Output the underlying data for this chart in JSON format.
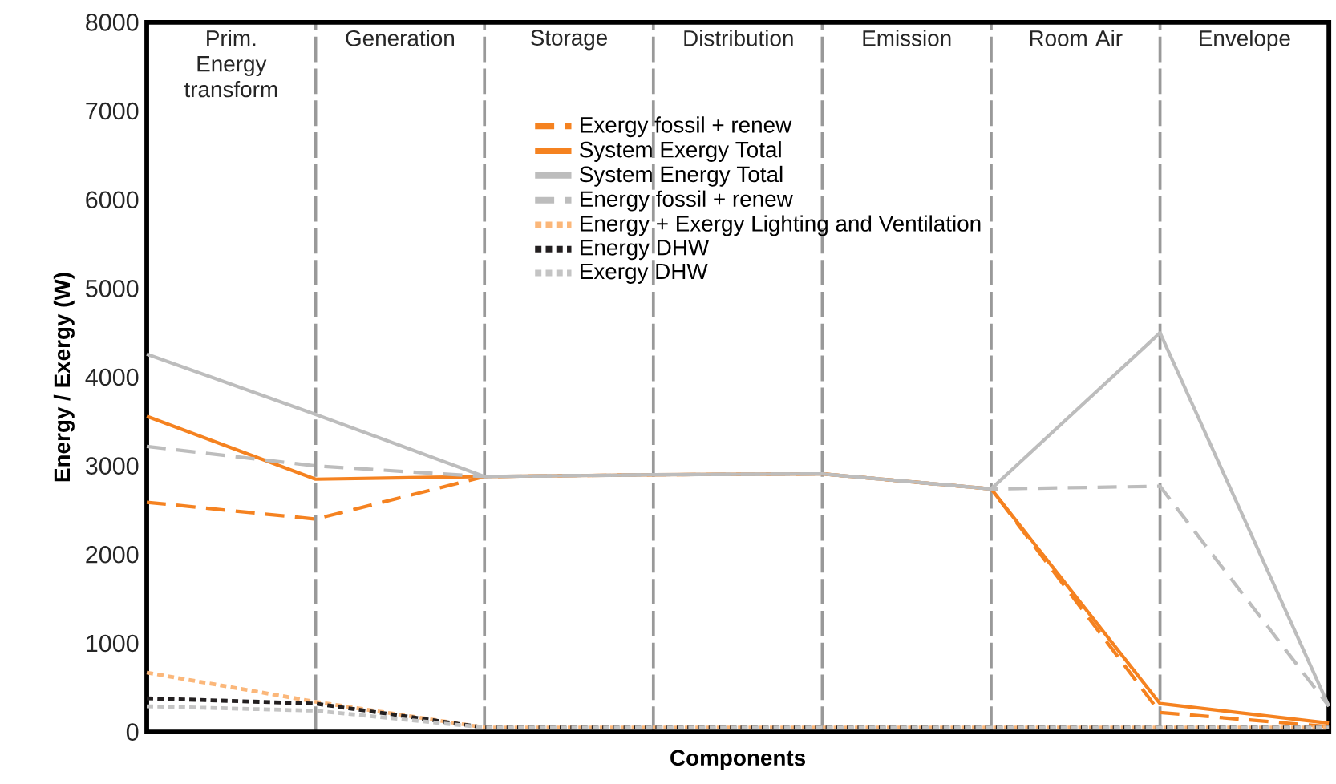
{
  "chart_data": {
    "type": "line",
    "xlabel": "Components",
    "ylabel": "Energy / Exergy (W)",
    "categories": [
      null,
      null,
      null,
      null,
      null,
      null,
      null,
      null
    ],
    "ylim": [
      0,
      8000
    ],
    "yticks": [
      0,
      1000,
      2000,
      3000,
      4000,
      5000,
      6000,
      7000,
      8000
    ],
    "legend": "top",
    "grid": "x",
    "series": [
      {
        "name": "Exergy fossil + renew",
        "color": "#f58220",
        "line_style": "dashed",
        "values": [
          2590,
          2400,
          2880,
          2900,
          2910,
          2740,
          220,
          60
        ]
      },
      {
        "name": "System Exergy Total",
        "color": "#f58220",
        "line_style": "solid",
        "values": [
          3560,
          2850,
          2880,
          2900,
          2910,
          2740,
          320,
          100
        ]
      },
      {
        "name": "System Energy Total",
        "color": "#bdbdbd",
        "line_style": "solid",
        "values": [
          4260,
          3580,
          2880,
          2900,
          2910,
          2740,
          4500,
          290
        ]
      },
      {
        "name": "Energy fossil + renew",
        "color": "#bdbdbd",
        "line_style": "dashed",
        "values": [
          3220,
          3000,
          2880,
          2900,
          2910,
          2740,
          2770,
          290
        ]
      },
      {
        "name": "Energy + Exergy Lighting and Ventilation",
        "color": "#fbb77a",
        "line_style": "dotted",
        "values": [
          670,
          340,
          50,
          50,
          50,
          50,
          50,
          50
        ]
      },
      {
        "name": "Energy DHW",
        "color": "#231f20",
        "line_style": "dotted",
        "values": [
          380,
          320,
          50,
          50,
          50,
          50,
          50,
          50
        ]
      },
      {
        "name": "Exergy DHW",
        "color": "#c4c4c4",
        "line_style": "dotted",
        "values": [
          290,
          240,
          50,
          50,
          50,
          50,
          50,
          50
        ]
      }
    ],
    "annotations": [
      "Prim. Energy transform",
      "Generation",
      "Storage",
      "Distribution",
      "Emission",
      "Room Air",
      "Envelope"
    ]
  }
}
